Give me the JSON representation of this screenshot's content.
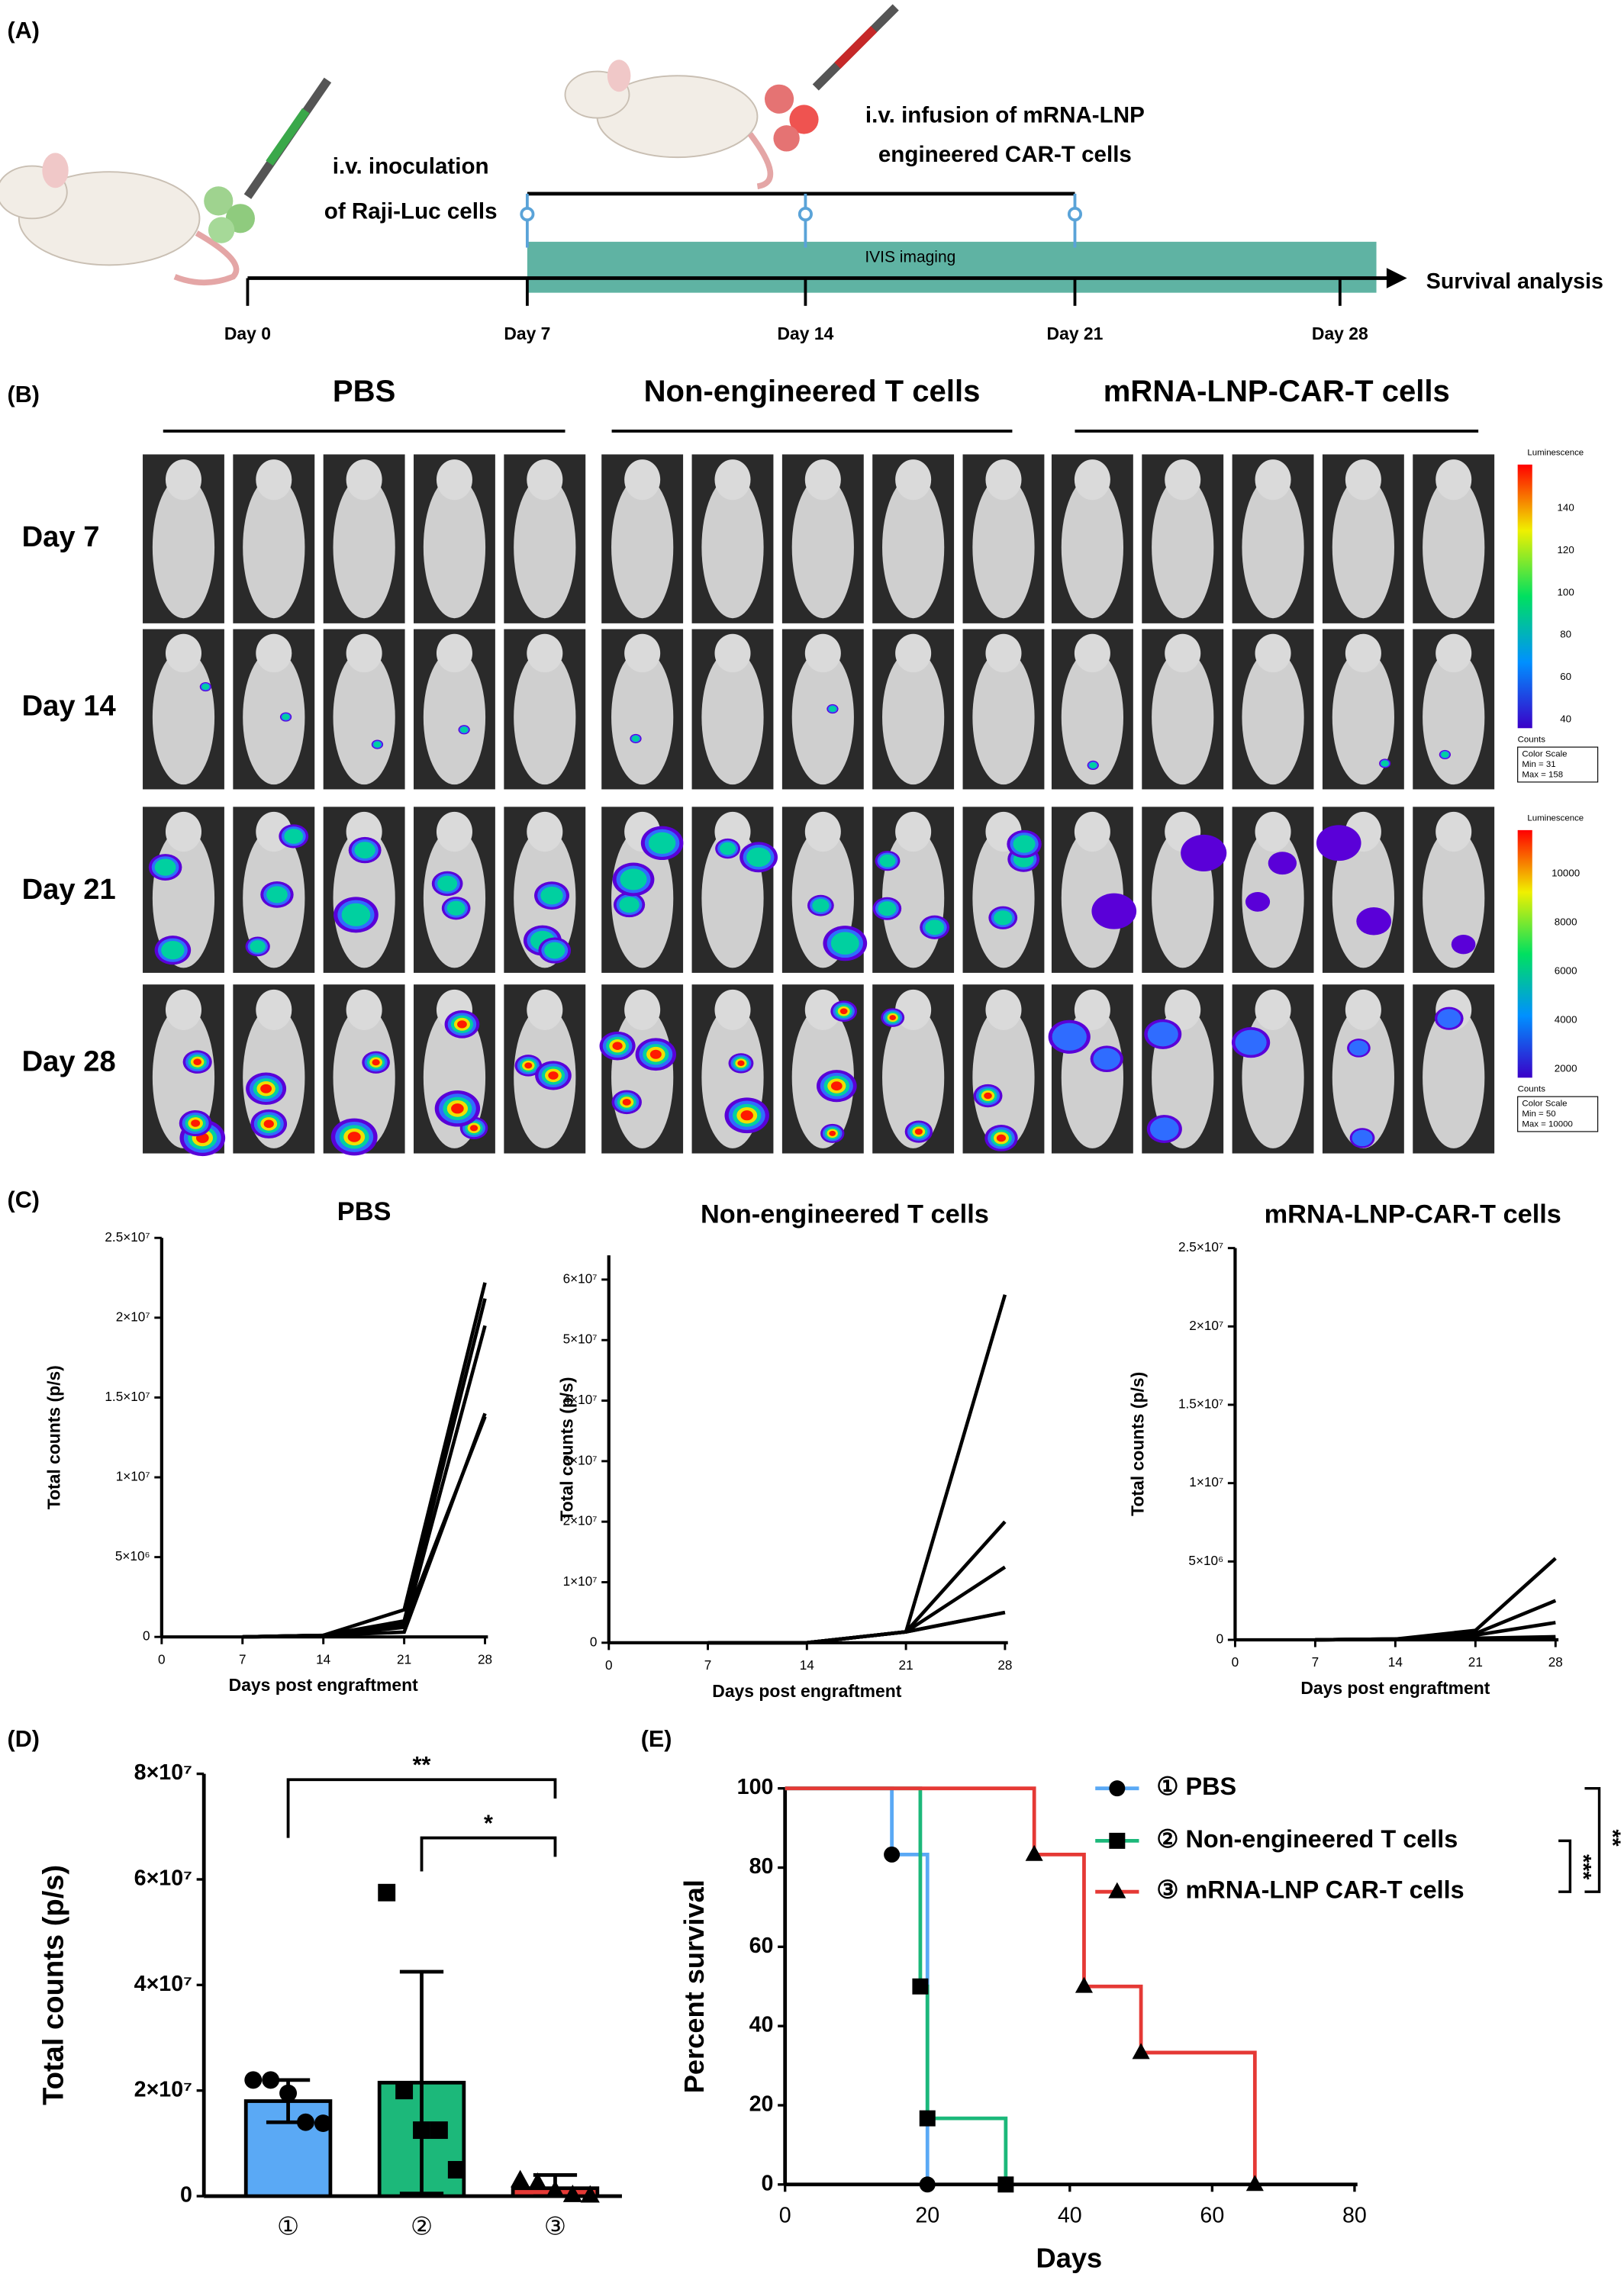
{
  "panel_labels": [
    "(A)",
    "(B)",
    "(C)",
    "(D)",
    "(E)"
  ],
  "schematic": {
    "inoculation": [
      "i.v. inoculation",
      "of Raji-Luc cells"
    ],
    "infusion": [
      "i.v. infusion of mRNA-LNP",
      "engineered CAR-T cells"
    ],
    "imaging": "IVIS imaging",
    "endpoint": "Survival analysis",
    "days": [
      "Day 0",
      "Day 7",
      "Day 14",
      "Day 21",
      "Day 28"
    ]
  },
  "imaging": {
    "groups": [
      "PBS",
      "Non-engineered T cells",
      "mRNA-LNP-CAR-T cells"
    ],
    "rows": [
      "Day 7",
      "Day 14",
      "Day 21",
      "Day 28"
    ],
    "scales": [
      {
        "title": "Luminescence",
        "ticks": [
          140,
          120,
          100,
          80,
          60,
          40
        ],
        "unit": "Counts",
        "legend": [
          "Color Scale",
          "Min = 31",
          "Max = 158"
        ]
      },
      {
        "title": "Luminescence",
        "ticks": [
          10000,
          8000,
          6000,
          4000,
          2000
        ],
        "unit": "Counts",
        "legend": [
          "Color Scale",
          "Min = 50",
          "Max = 10000"
        ]
      }
    ]
  },
  "chart_data": [
    {
      "type": "line",
      "title": "PBS",
      "x_label": "Days post engraftment",
      "y_label": "Total counts (p/s)",
      "color": "#000000",
      "x": [
        7,
        14,
        21,
        28
      ],
      "series": [
        {
          "values": [
            0,
            100000,
            1700000,
            22200000
          ]
        },
        {
          "values": [
            0,
            100000,
            1000000,
            21200000
          ]
        },
        {
          "values": [
            0,
            100000,
            600000,
            19500000
          ]
        },
        {
          "values": [
            0,
            100000,
            300000,
            14000000
          ]
        },
        {
          "values": [
            0,
            100000,
            800000,
            13800000
          ]
        }
      ],
      "xlim": [
        0,
        28
      ],
      "xticks": [
        0,
        7,
        14,
        21,
        28
      ],
      "ylim": [
        0,
        25000000
      ],
      "yticks": [
        0,
        {
          "value": 5000000,
          "label": "5×10⁶"
        },
        {
          "value": 10000000,
          "label": "1×10⁷"
        },
        {
          "value": 15000000,
          "label": "1.5×10⁷"
        },
        {
          "value": 20000000,
          "label": "2×10⁷"
        },
        {
          "value": 25000000,
          "label": "2.5×10⁷"
        }
      ]
    },
    {
      "type": "line",
      "title": "Non-engineered T cells",
      "x_label": "Days post engraftment",
      "y_label": "Total counts (p/s)",
      "color": "#000000",
      "x": [
        7,
        14,
        21,
        28
      ],
      "series": [
        {
          "values": [
            0,
            0,
            1800000,
            57500000
          ]
        },
        {
          "values": [
            0,
            0,
            1800000,
            20000000
          ]
        },
        {
          "values": [
            0,
            0,
            1800000,
            12500000
          ]
        },
        {
          "values": [
            0,
            0,
            1800000,
            5000000
          ]
        },
        {
          "values": [
            0,
            0,
            1800000,
            5000000
          ]
        }
      ],
      "xlim": [
        0,
        28
      ],
      "xticks": [
        0,
        7,
        14,
        21,
        28
      ],
      "ylim": [
        0,
        64000000
      ],
      "yticks": [
        0,
        {
          "value": 10000000,
          "label": "1×10⁷"
        },
        {
          "value": 20000000,
          "label": "2×10⁷"
        },
        {
          "value": 30000000,
          "label": "3×10⁷"
        },
        {
          "value": 40000000,
          "label": "4×10⁷"
        },
        {
          "value": 50000000,
          "label": "5×10⁷"
        },
        {
          "value": 60000000,
          "label": "6×10⁷"
        }
      ]
    },
    {
      "type": "line",
      "title": "mRNA-LNP-CAR-T cells",
      "x_label": "Days post engraftment",
      "y_label": "Total counts (p/s)",
      "color": "#000000",
      "x": [
        7,
        14,
        21,
        28
      ],
      "series": [
        {
          "values": [
            0,
            50000,
            600000,
            5200000
          ]
        },
        {
          "values": [
            0,
            50000,
            400000,
            2500000
          ]
        },
        {
          "values": [
            0,
            50000,
            300000,
            1100000
          ]
        },
        {
          "values": [
            0,
            50000,
            100000,
            200000
          ]
        },
        {
          "values": [
            0,
            50000,
            100000,
            100000
          ]
        }
      ],
      "xlim": [
        0,
        28
      ],
      "xticks": [
        0,
        7,
        14,
        21,
        28
      ],
      "ylim": [
        0,
        25000000
      ],
      "yticks": [
        0,
        {
          "value": 5000000,
          "label": "5×10⁶"
        },
        {
          "value": 10000000,
          "label": "1×10⁷"
        },
        {
          "value": 15000000,
          "label": "1.5×10⁷"
        },
        {
          "value": 20000000,
          "label": "2×10⁷"
        },
        {
          "value": 25000000,
          "label": "2.5×10⁷"
        }
      ]
    },
    {
      "type": "bar",
      "y_label": "Total counts (p/s)",
      "categories": [
        "①",
        "②",
        "③"
      ],
      "values": [
        18000000,
        21500000,
        1500000
      ],
      "errors": [
        4000000,
        21000000,
        2500000
      ],
      "points": [
        [
          22000000,
          22000000,
          19500000,
          14000000,
          13800000
        ],
        [
          57500000,
          20000000,
          12500000,
          12500000,
          5000000
        ],
        [
          3000000,
          2500000,
          1000000,
          200000,
          100000
        ]
      ],
      "colors": [
        "#5aa9f5",
        "#1cb87a",
        "#e53935"
      ],
      "markers": [
        "circle",
        "square",
        "triangle"
      ],
      "ylim": [
        0,
        80000000
      ],
      "yticks": [
        0,
        {
          "value": 20000000,
          "label": "2×10⁷"
        },
        {
          "value": 40000000,
          "label": "4×10⁷"
        },
        {
          "value": 60000000,
          "label": "6×10⁷"
        },
        {
          "value": 80000000,
          "label": "8×10⁷"
        }
      ],
      "annotations": [
        "**",
        "*"
      ]
    },
    {
      "type": "step",
      "x_label": "Days",
      "y_label": "Percent survival",
      "series": [
        {
          "name": "① PBS",
          "color": "#5aa9f5",
          "marker": "circle",
          "x": [
            0,
            15,
            20
          ],
          "values": [
            100,
            83.3,
            0
          ]
        },
        {
          "name": "② Non-engineered T cells",
          "color": "#1cb87a",
          "marker": "square",
          "x": [
            0,
            19,
            20,
            31
          ],
          "values": [
            100,
            50,
            16.7,
            0
          ]
        },
        {
          "name": "③ mRNA-LNP CAR-T cells",
          "color": "#e53935",
          "marker": "triangle",
          "x": [
            0,
            35,
            42,
            50,
            66
          ],
          "values": [
            100,
            83.3,
            50,
            33.3,
            0
          ]
        }
      ],
      "xlim": [
        0,
        80
      ],
      "xticks": [
        0,
        20,
        40,
        60,
        80
      ],
      "ylim": [
        0,
        100
      ],
      "yticks": [
        0,
        20,
        40,
        60,
        80,
        100
      ],
      "annotations": [
        "**",
        "***"
      ]
    }
  ]
}
